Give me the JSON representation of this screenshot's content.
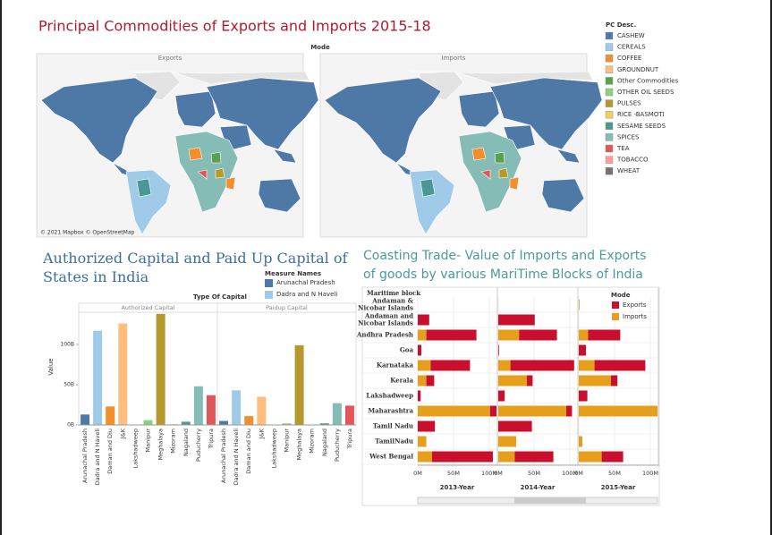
{
  "chart_data": [
    {
      "type": "map",
      "title": "Principal Commodities of Exports and Imports 2015-18",
      "mode_label": "Mode",
      "panels": [
        "Exports",
        "Imports"
      ],
      "attribution": "© 2021 Mapbox © OpenStreetMap",
      "legend_title": "PC Desc.",
      "legend": [
        {
          "name": "CASHEW",
          "color": "#4e79a7"
        },
        {
          "name": "CEREALS",
          "color": "#a0cbe8"
        },
        {
          "name": "COFFEE",
          "color": "#f28e2b"
        },
        {
          "name": "GROUNDNUT",
          "color": "#ffbe7d"
        },
        {
          "name": "Other Commodities",
          "color": "#59a14f"
        },
        {
          "name": "OTHER OIL SEEDS",
          "color": "#8cd17d"
        },
        {
          "name": "PULSES",
          "color": "#b6992d"
        },
        {
          "name": "RICE -BASMOTI",
          "color": "#f1ce63"
        },
        {
          "name": "SESAME SEEDS",
          "color": "#499894"
        },
        {
          "name": "SPICES",
          "color": "#86bcb6"
        },
        {
          "name": "TEA",
          "color": "#e15759"
        },
        {
          "name": "TOBACCO",
          "color": "#ff9d9a"
        },
        {
          "name": "WHEAT",
          "color": "#79706e"
        }
      ]
    },
    {
      "type": "bar",
      "title": "Authorized Capital and Paid Up Capital of States in India",
      "header": "Type Of Capital",
      "legend_title": "Measure Names",
      "y_label": "Value",
      "panels": [
        "Authorized Capital",
        "Paidup Capital"
      ],
      "categories": [
        "Arunachal Pradesh",
        "Dadra and N Haveli",
        "Daman and Diu",
        "J&K",
        "Lakshadweep",
        "Manipur",
        "Meghalaya",
        "Mizoram",
        "Nagaland",
        "Puducherry",
        "Tripura"
      ],
      "colors": [
        "#4e79a7",
        "#a0cbe8",
        "#f28e2b",
        "#ffbe7d",
        "#59a14f",
        "#8cd17d",
        "#b6992d",
        "#f1ce63",
        "#499894",
        "#86bcb6",
        "#e15759"
      ],
      "values": [
        [
          13,
          117,
          23,
          126,
          0,
          6,
          138,
          1,
          4,
          48,
          37
        ],
        [
          5,
          43,
          11,
          35,
          0,
          2,
          99,
          0.5,
          2,
          27,
          24
        ]
      ],
      "ylim": [
        0,
        140
      ],
      "yticks": [
        {
          "value": 0,
          "label": "0B"
        },
        {
          "value": 50,
          "label": "50B"
        },
        {
          "value": 100,
          "label": "100B"
        }
      ]
    },
    {
      "type": "hbar_stacked",
      "title": "Coasting Trade- Value of Imports and Exports of goods by various MariTime Blocks of India",
      "row_header": "Maritime block",
      "legend_title": "Mode",
      "panels": [
        "2013-Year",
        "2014-Year",
        "2015-Year"
      ],
      "categories": [
        "Andaman & Nicobar Islands",
        "Andaman and Nicobar Islands",
        "Andhra Pradesh",
        "Goa",
        "Karnataka",
        "Kerala",
        "Lakshadweep",
        "Maharashtra",
        "Tamil Nadu",
        "TamilNadu",
        "West Bengal"
      ],
      "series": [
        {
          "name": "Exports",
          "color": "#c8102e",
          "values": [
            [
              0,
              16,
              70,
              5,
              55,
              11,
              4,
              9,
              24,
              0,
              85
            ],
            [
              0,
              51,
              53,
              1,
              89,
              8,
              9,
              8,
              47,
              0,
              54
            ],
            [
              0,
              0,
              45,
              10,
              71,
              9,
              12,
              0,
              0,
              0,
              30
            ]
          ]
        },
        {
          "name": "Imports",
          "color": "#e69f1a",
          "values": [
            [
              0,
              0,
              12,
              0,
              18,
              12,
              0,
              101,
              0,
              12,
              20
            ],
            [
              0,
              0,
              29,
              0,
              17,
              40,
              0,
              95,
              0,
              25,
              23
            ],
            [
              1,
              0,
              13,
              0,
              22,
              45,
              0,
              110,
              0,
              5,
              32
            ]
          ]
        }
      ],
      "xlim": [
        0,
        110
      ],
      "xticks": [
        {
          "value": 0,
          "label": "0M"
        },
        {
          "value": 50,
          "label": "50M"
        },
        {
          "value": 100,
          "label": "100M"
        }
      ]
    }
  ]
}
